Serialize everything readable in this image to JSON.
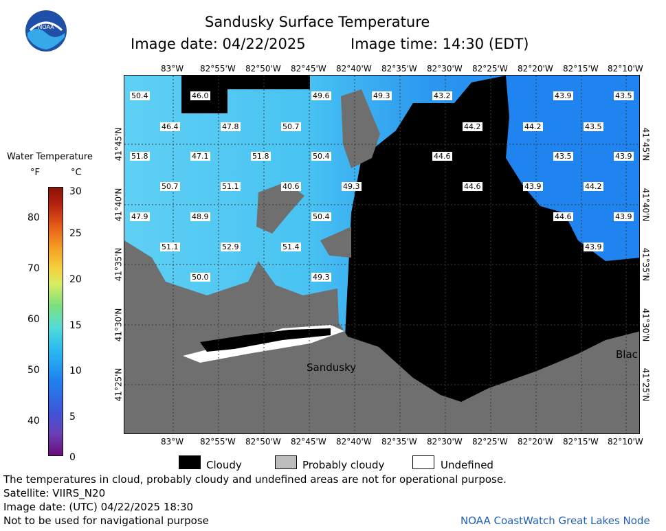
{
  "header": {
    "title": "Sandusky Surface Temperature",
    "image_date": "Image date: 04/22/2025",
    "image_time": "Image time: 14:30 (EDT)",
    "logo_text": "NOAA"
  },
  "map": {
    "lon_ticks": [
      "83°W",
      "82°55'W",
      "82°50'W",
      "82°45'W",
      "82°40'W",
      "82°35'W",
      "82°30'W",
      "82°25'W",
      "82°20'W",
      "82°15'W",
      "82°10'W"
    ],
    "lat_ticks": [
      "41°45'N",
      "41°40'N",
      "41°35'N",
      "41°30'N",
      "41°25'N"
    ],
    "place_labels": {
      "sandusky": "Sandusky",
      "black": "Blac"
    },
    "temperature_labels": [
      {
        "value": "50.4"
      },
      {
        "value": "46.0"
      },
      {
        "value": "49.6"
      },
      {
        "value": "49.3"
      },
      {
        "value": "43.2"
      },
      {
        "value": "43.9"
      },
      {
        "value": "43.5"
      },
      {
        "value": "46.4"
      },
      {
        "value": "47.8"
      },
      {
        "value": "50.7"
      },
      {
        "value": "44.2"
      },
      {
        "value": "44.2"
      },
      {
        "value": "43.5"
      },
      {
        "value": "51.8"
      },
      {
        "value": "47.1"
      },
      {
        "value": "51.8"
      },
      {
        "value": "50.4"
      },
      {
        "value": "44.6"
      },
      {
        "value": "43.5"
      },
      {
        "value": "43.9"
      },
      {
        "value": "50.7"
      },
      {
        "value": "51.1"
      },
      {
        "value": "40.6"
      },
      {
        "value": "49.3"
      },
      {
        "value": "44.6"
      },
      {
        "value": "43.9"
      },
      {
        "value": "44.2"
      },
      {
        "value": "47.9"
      },
      {
        "value": "48.9"
      },
      {
        "value": "50.4"
      },
      {
        "value": "44.6"
      },
      {
        "value": "43.9"
      },
      {
        "value": "51.1"
      },
      {
        "value": "52.9"
      },
      {
        "value": "51.4"
      },
      {
        "value": "43.9"
      },
      {
        "value": "50.0"
      },
      {
        "value": "49.3"
      }
    ]
  },
  "legend": {
    "title": "Water Temperature",
    "unit_f": "°F",
    "unit_c": "°C",
    "f_ticks": [
      "80",
      "70",
      "60",
      "50",
      "40"
    ],
    "c_ticks": [
      "30",
      "25",
      "20",
      "15",
      "10",
      "5",
      "0"
    ]
  },
  "key": {
    "cloudy": "Cloudy",
    "probably_cloudy": "Probably cloudy",
    "undefined": "Undefined"
  },
  "footer": {
    "line1": "The temperatures in cloud, probably cloudy and undefined areas are not for operational purpose.",
    "line2": "Satellite: VIIRS_N20",
    "line3": "Image date: (UTC) 04/22/2025  18:30",
    "line4": "Not to be used for navigational purpose",
    "credit": "NOAA CoastWatch Great Lakes Node"
  },
  "colors": {
    "cloud": "#000000",
    "land": "#6f6f6f",
    "probably_cloudy": "#bdbdbd",
    "water_cold": "#1f7ef2",
    "water_warm": "#4fd0f0",
    "credit": "#1f5fb8"
  }
}
